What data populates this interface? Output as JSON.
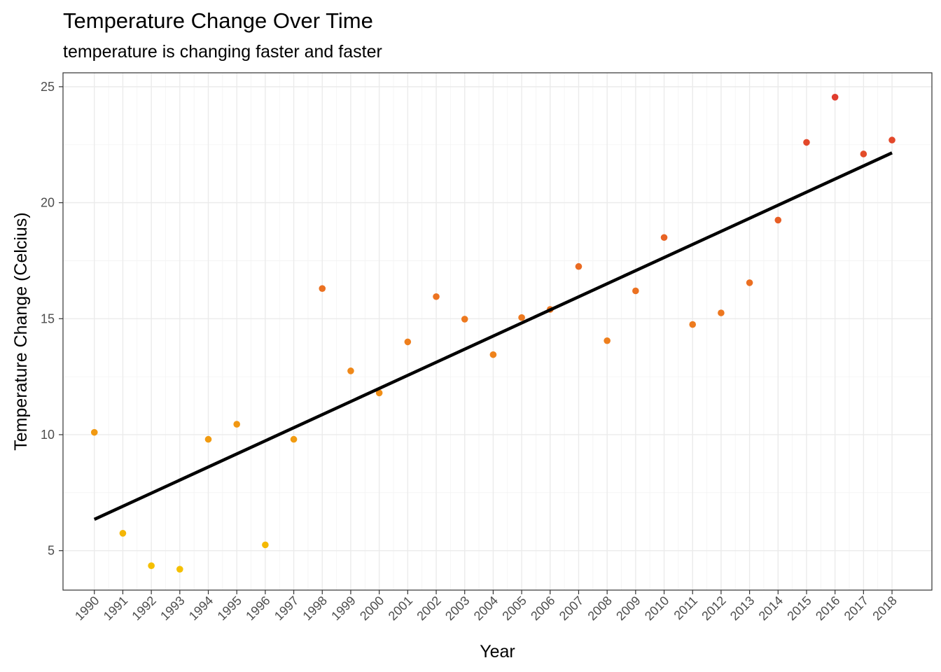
{
  "chart_data": {
    "type": "scatter",
    "title": "Temperature Change Over Time",
    "subtitle": "temperature is changing faster and faster",
    "xlabel": "Year",
    "ylabel": "Temperature Change (Celcius)",
    "x": [
      1990,
      1991,
      1992,
      1993,
      1994,
      1995,
      1996,
      1997,
      1998,
      1999,
      2000,
      2001,
      2002,
      2003,
      2004,
      2005,
      2006,
      2007,
      2008,
      2009,
      2010,
      2011,
      2012,
      2013,
      2014,
      2015,
      2016,
      2017,
      2018
    ],
    "y": [
      10.1,
      5.75,
      4.35,
      4.2,
      9.8,
      10.45,
      5.25,
      9.8,
      16.3,
      12.75,
      11.8,
      14.0,
      15.95,
      14.98,
      13.45,
      15.05,
      15.4,
      17.25,
      14.05,
      16.2,
      18.5,
      14.75,
      15.25,
      16.55,
      19.25,
      22.6,
      24.55,
      22.1,
      22.7
    ],
    "x_ticks": [
      "1990",
      "1991",
      "1992",
      "1993",
      "1994",
      "1995",
      "1996",
      "1997",
      "1998",
      "1999",
      "2000",
      "2001",
      "2002",
      "2003",
      "2004",
      "2005",
      "2006",
      "2007",
      "2008",
      "2009",
      "2010",
      "2011",
      "2012",
      "2013",
      "2014",
      "2015",
      "2016",
      "2017",
      "2018"
    ],
    "y_ticks": [
      5,
      10,
      15,
      20,
      25
    ],
    "ylim": [
      3.3,
      25.6
    ],
    "xlim": [
      1988.9,
      2019.4
    ],
    "trend_line": {
      "x": [
        1990,
        2018
      ],
      "y": [
        6.35,
        22.15
      ],
      "color": "#000000"
    },
    "point_color_scale": {
      "low": "#F5C000",
      "mid": "#EE7D1E",
      "high": "#E03C2D"
    },
    "grid": true,
    "legend": "none"
  }
}
